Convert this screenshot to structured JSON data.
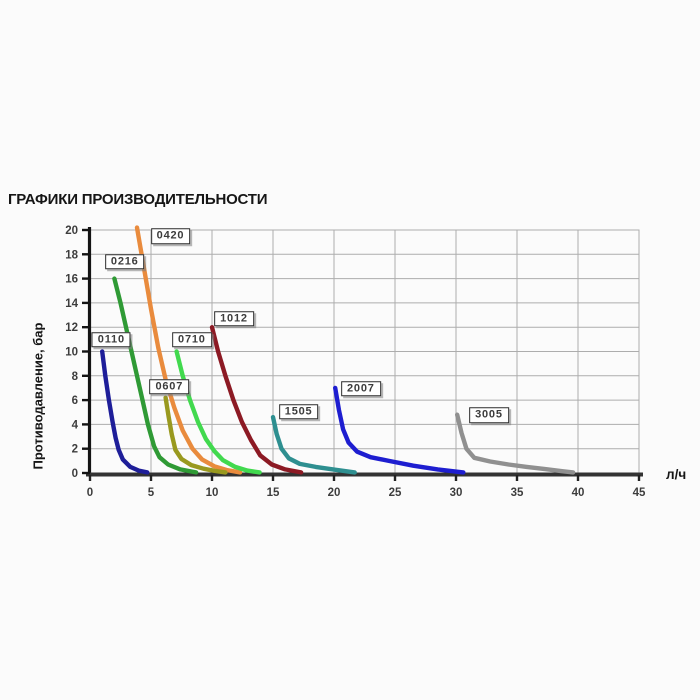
{
  "page": {
    "title": "ГРАФИКИ ПРОИЗВОДИТЕЛЬНОСТИ",
    "background": "#fbfbfb"
  },
  "chart_data": {
    "type": "line",
    "title": "ГРАФИКИ ПРОИЗВОДИТЕЛЬНОСТИ",
    "xlabel": "л/ч",
    "ylabel": "Противодавление, бар",
    "xlim": [
      0,
      45
    ],
    "ylim": [
      0,
      20
    ],
    "x_ticks": [
      0,
      5,
      10,
      15,
      20,
      25,
      30,
      35,
      40,
      45
    ],
    "y_ticks": [
      0,
      2,
      4,
      6,
      8,
      10,
      12,
      14,
      16,
      18,
      20
    ],
    "grid": true,
    "grid_color": "#adadad",
    "axis_color": "#1f1f1f",
    "legend_position": "inline-boxed-labels",
    "series": [
      {
        "name": "0110",
        "color": "#1e1e99",
        "label_at": [
          1.75,
          10.95
        ],
        "points": [
          [
            1,
            10
          ],
          [
            1.25,
            8
          ],
          [
            1.55,
            6
          ],
          [
            1.85,
            4.2
          ],
          [
            2.1,
            2.9
          ],
          [
            2.35,
            1.9
          ],
          [
            2.7,
            1.1
          ],
          [
            3.3,
            0.5
          ],
          [
            4,
            0.2
          ],
          [
            4.7,
            0.05
          ]
        ]
      },
      {
        "name": "0216",
        "color": "#2f9a35",
        "label_at": [
          2.85,
          17.4
        ],
        "points": [
          [
            2,
            16
          ],
          [
            2.5,
            14
          ],
          [
            2.95,
            12
          ],
          [
            3.4,
            10
          ],
          [
            3.85,
            8
          ],
          [
            4.3,
            6
          ],
          [
            4.75,
            4
          ],
          [
            5.25,
            2.2
          ],
          [
            5.7,
            1.3
          ],
          [
            6.4,
            0.7
          ],
          [
            7.4,
            0.3
          ],
          [
            8.7,
            0.05
          ]
        ]
      },
      {
        "name": "0420",
        "color": "#e98b3d",
        "label_at": [
          6.6,
          19.5
        ],
        "points": [
          [
            3.85,
            20.2
          ],
          [
            4.4,
            17
          ],
          [
            5,
            13.5
          ],
          [
            5.6,
            10.3
          ],
          [
            6.2,
            7.7
          ],
          [
            6.9,
            5.4
          ],
          [
            7.6,
            3.5
          ],
          [
            8.4,
            2
          ],
          [
            9.2,
            1.1
          ],
          [
            10.2,
            0.55
          ],
          [
            11.2,
            0.25
          ],
          [
            12.3,
            0.05
          ]
        ]
      },
      {
        "name": "0607",
        "color": "#99991f",
        "label_at": [
          6.5,
          7.1
        ],
        "points": [
          [
            6.2,
            6.2
          ],
          [
            6.45,
            4.6
          ],
          [
            6.7,
            3.2
          ],
          [
            7,
            1.9
          ],
          [
            7.5,
            1.15
          ],
          [
            8.3,
            0.65
          ],
          [
            9.3,
            0.35
          ],
          [
            10.2,
            0.18
          ],
          [
            11.1,
            0.05
          ]
        ]
      },
      {
        "name": "0710",
        "color": "#41d94e",
        "label_at": [
          8.35,
          10.95
        ],
        "points": [
          [
            7.1,
            10
          ],
          [
            7.6,
            8
          ],
          [
            8.2,
            6
          ],
          [
            8.85,
            4.2
          ],
          [
            9.5,
            2.8
          ],
          [
            10.2,
            1.8
          ],
          [
            10.9,
            1.05
          ],
          [
            11.9,
            0.5
          ],
          [
            12.9,
            0.2
          ],
          [
            13.9,
            0.05
          ]
        ]
      },
      {
        "name": "1012",
        "color": "#8c1a24",
        "label_at": [
          11.8,
          12.7
        ],
        "points": [
          [
            10,
            12
          ],
          [
            10.5,
            10
          ],
          [
            11.1,
            8
          ],
          [
            11.75,
            6
          ],
          [
            12.45,
            4.2
          ],
          [
            13.2,
            2.7
          ],
          [
            13.95,
            1.45
          ],
          [
            14.9,
            0.7
          ],
          [
            16,
            0.3
          ],
          [
            17.3,
            0.05
          ]
        ]
      },
      {
        "name": "1505",
        "color": "#2e8f90",
        "label_at": [
          17.1,
          5.05
        ],
        "points": [
          [
            15,
            4.6
          ],
          [
            15.3,
            3.2
          ],
          [
            15.7,
            2
          ],
          [
            16.3,
            1.2
          ],
          [
            17.2,
            0.75
          ],
          [
            18.5,
            0.5
          ],
          [
            20,
            0.28
          ],
          [
            21.7,
            0.05
          ]
        ]
      },
      {
        "name": "2007",
        "color": "#1e1ed0",
        "label_at": [
          22.2,
          6.95
        ],
        "points": [
          [
            20.1,
            7
          ],
          [
            20.4,
            5.2
          ],
          [
            20.75,
            3.6
          ],
          [
            21.2,
            2.5
          ],
          [
            21.9,
            1.75
          ],
          [
            23,
            1.3
          ],
          [
            24.5,
            1
          ],
          [
            26.5,
            0.6
          ],
          [
            28.5,
            0.3
          ],
          [
            30.6,
            0.05
          ]
        ]
      },
      {
        "name": "3005",
        "color": "#909090",
        "label_at": [
          32.7,
          4.75
        ],
        "points": [
          [
            30.1,
            4.8
          ],
          [
            30.45,
            3.3
          ],
          [
            30.85,
            2
          ],
          [
            31.5,
            1.25
          ],
          [
            32.8,
            0.95
          ],
          [
            34.3,
            0.7
          ],
          [
            35.8,
            0.5
          ],
          [
            37.3,
            0.32
          ],
          [
            38.7,
            0.15
          ],
          [
            39.6,
            0.05
          ]
        ]
      }
    ]
  }
}
